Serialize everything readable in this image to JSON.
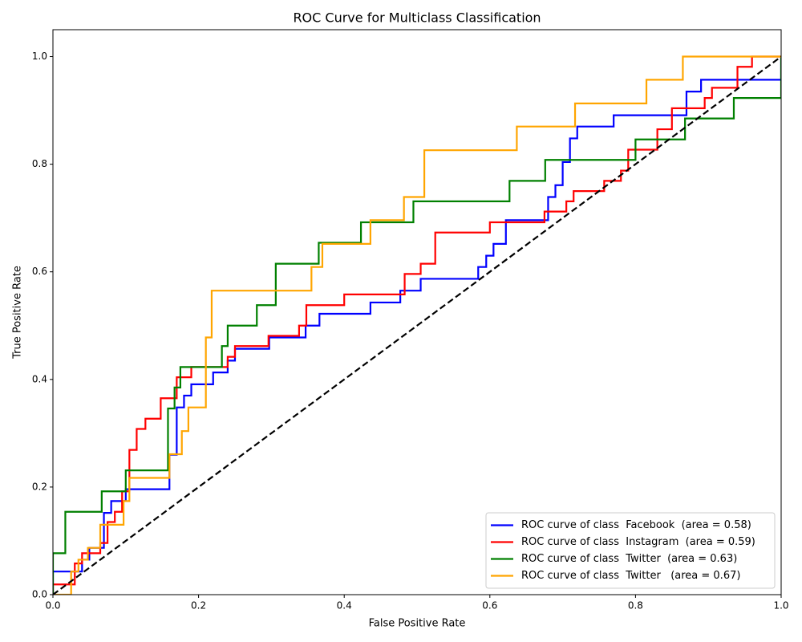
{
  "chart_data": {
    "type": "line",
    "title": "ROC Curve for Multiclass Classification",
    "xlabel": "False Positive Rate",
    "ylabel": "True Positive Rate",
    "xlim": [
      0,
      1
    ],
    "ylim": [
      0,
      1.05
    ],
    "xticks": [
      {
        "value": 0,
        "label": "0.0"
      },
      0.2,
      0.4,
      0.6,
      0.8,
      {
        "value": 1,
        "label": "1.0"
      }
    ],
    "yticks": [
      {
        "value": 0,
        "label": "0.0"
      },
      0.2,
      0.4,
      0.6,
      0.8,
      {
        "value": 1,
        "label": "1.0"
      }
    ],
    "grid": false,
    "legend": "lower right",
    "series": [
      {
        "name": "ROC curve of class  Facebook  (area = 0.58)",
        "color": "blue",
        "x": [
          0,
          0,
          0.04,
          0.04,
          0.05,
          0.05,
          0.07,
          0.07,
          0.08,
          0.08,
          0.1,
          0.1,
          0.16,
          0.16,
          0.17,
          0.17,
          0.18,
          0.18,
          0.19,
          0.19,
          0.22,
          0.22,
          0.24,
          0.24,
          0.25,
          0.25,
          0.297,
          0.297,
          0.347,
          0.347,
          0.366,
          0.366,
          0.436,
          0.436,
          0.477,
          0.477,
          0.505,
          0.505,
          0.584,
          0.584,
          0.595,
          0.595,
          0.605,
          0.605,
          0.622,
          0.622,
          0.68,
          0.68,
          0.69,
          0.69,
          0.7,
          0.7,
          0.71,
          0.71,
          0.72,
          0.72,
          0.77,
          0.77,
          0.87,
          0.87,
          0.89,
          0.89,
          1,
          1
        ],
        "values": [
          0,
          0.043,
          0.043,
          0.065,
          0.065,
          0.087,
          0.087,
          0.152,
          0.152,
          0.174,
          0.174,
          0.196,
          0.196,
          0.26,
          0.26,
          0.348,
          0.348,
          0.37,
          0.37,
          0.391,
          0.391,
          0.413,
          0.413,
          0.435,
          0.435,
          0.457,
          0.457,
          0.478,
          0.478,
          0.5,
          0.5,
          0.522,
          0.522,
          0.543,
          0.543,
          0.565,
          0.565,
          0.587,
          0.587,
          0.609,
          0.609,
          0.63,
          0.63,
          0.652,
          0.652,
          0.696,
          0.696,
          0.739,
          0.739,
          0.761,
          0.761,
          0.804,
          0.804,
          0.848,
          0.848,
          0.87,
          0.87,
          0.891,
          0.891,
          0.935,
          0.935,
          0.957,
          0.957,
          1
        ]
      },
      {
        "name": "ROC curve of class  Instagram  (area = 0.59)",
        "color": "red",
        "x": [
          0,
          0,
          0.03,
          0.03,
          0.04,
          0.04,
          0.065,
          0.065,
          0.075,
          0.075,
          0.085,
          0.085,
          0.095,
          0.095,
          0.105,
          0.105,
          0.115,
          0.115,
          0.127,
          0.127,
          0.148,
          0.148,
          0.17,
          0.17,
          0.19,
          0.19,
          0.24,
          0.24,
          0.25,
          0.25,
          0.296,
          0.296,
          0.338,
          0.338,
          0.348,
          0.348,
          0.4,
          0.4,
          0.483,
          0.483,
          0.505,
          0.505,
          0.525,
          0.525,
          0.6,
          0.6,
          0.675,
          0.675,
          0.705,
          0.705,
          0.715,
          0.715,
          0.757,
          0.757,
          0.78,
          0.78,
          0.79,
          0.79,
          0.83,
          0.83,
          0.85,
          0.85,
          0.895,
          0.895,
          0.905,
          0.905,
          0.94,
          0.94,
          0.96,
          0.96,
          1
        ],
        "values": [
          0,
          0.019,
          0.019,
          0.058,
          0.058,
          0.077,
          0.077,
          0.096,
          0.096,
          0.135,
          0.135,
          0.154,
          0.154,
          0.192,
          0.192,
          0.269,
          0.269,
          0.308,
          0.308,
          0.327,
          0.327,
          0.365,
          0.365,
          0.404,
          0.404,
          0.423,
          0.423,
          0.442,
          0.442,
          0.462,
          0.462,
          0.481,
          0.481,
          0.5,
          0.5,
          0.538,
          0.538,
          0.558,
          0.558,
          0.596,
          0.596,
          0.615,
          0.615,
          0.673,
          0.673,
          0.692,
          0.692,
          0.712,
          0.712,
          0.731,
          0.731,
          0.75,
          0.75,
          0.769,
          0.769,
          0.788,
          0.788,
          0.827,
          0.827,
          0.865,
          0.865,
          0.904,
          0.904,
          0.923,
          0.923,
          0.942,
          0.942,
          0.981,
          0.981,
          1,
          1
        ]
      },
      {
        "name": "ROC curve of class  Twitter  (area = 0.63)",
        "color": "green",
        "x": [
          0,
          0,
          0.017,
          0.017,
          0.067,
          0.067,
          0.1,
          0.1,
          0.158,
          0.158,
          0.167,
          0.167,
          0.175,
          0.175,
          0.232,
          0.232,
          0.24,
          0.24,
          0.28,
          0.28,
          0.306,
          0.306,
          0.365,
          0.365,
          0.423,
          0.423,
          0.495,
          0.495,
          0.627,
          0.627,
          0.676,
          0.676,
          0.8,
          0.8,
          0.868,
          0.868,
          0.935,
          0.935,
          1,
          1
        ],
        "values": [
          0,
          0.077,
          0.077,
          0.154,
          0.154,
          0.192,
          0.192,
          0.231,
          0.231,
          0.346,
          0.346,
          0.385,
          0.385,
          0.423,
          0.423,
          0.462,
          0.462,
          0.5,
          0.5,
          0.538,
          0.538,
          0.615,
          0.615,
          0.654,
          0.654,
          0.692,
          0.692,
          0.731,
          0.731,
          0.769,
          0.769,
          0.808,
          0.808,
          0.846,
          0.846,
          0.885,
          0.885,
          0.923,
          0.923,
          1
        ]
      },
      {
        "name": "ROC curve of class  Twitter   (area = 0.67)",
        "color": "orange",
        "x": [
          0,
          0.025,
          0.025,
          0.035,
          0.035,
          0.048,
          0.048,
          0.065,
          0.065,
          0.097,
          0.097,
          0.105,
          0.105,
          0.16,
          0.16,
          0.177,
          0.177,
          0.186,
          0.186,
          0.21,
          0.21,
          0.218,
          0.218,
          0.355,
          0.355,
          0.37,
          0.37,
          0.436,
          0.436,
          0.482,
          0.482,
          0.51,
          0.51,
          0.637,
          0.637,
          0.717,
          0.717,
          0.815,
          0.815,
          0.865,
          0.865,
          1
        ],
        "values": [
          0,
          0,
          0.043,
          0.043,
          0.065,
          0.065,
          0.087,
          0.087,
          0.13,
          0.13,
          0.174,
          0.174,
          0.217,
          0.217,
          0.261,
          0.261,
          0.304,
          0.304,
          0.348,
          0.348,
          0.478,
          0.478,
          0.565,
          0.565,
          0.609,
          0.609,
          0.652,
          0.652,
          0.696,
          0.696,
          0.739,
          0.739,
          0.826,
          0.826,
          0.87,
          0.87,
          0.913,
          0.913,
          0.957,
          0.957,
          1,
          1
        ]
      }
    ],
    "reference_line": {
      "x": [
        0,
        1
      ],
      "values": [
        0,
        1
      ],
      "color": "black",
      "style": "dashed"
    }
  }
}
